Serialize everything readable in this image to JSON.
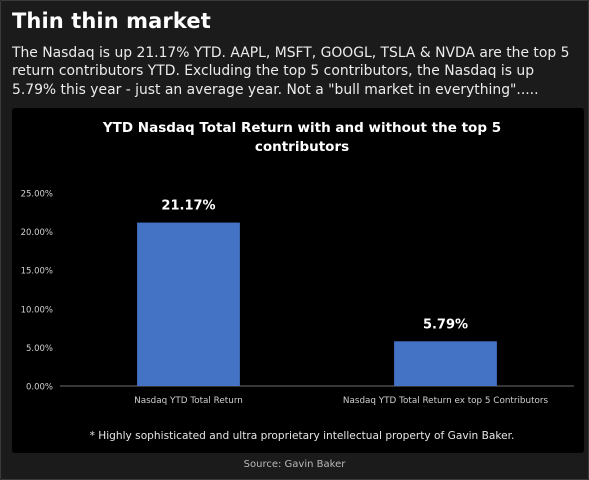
{
  "header": {
    "title": "Thin thin market",
    "description": "The Nasdaq is up 21.17% YTD. AAPL, MSFT, GOOGL, TSLA & NVDA are the top 5 return contributors YTD. Excluding the top 5 contributors, the Nasdaq is up 5.79% this year - just an average year. Not a \"bull market in everything\"....."
  },
  "footer": {
    "source": "Source: Gavin Baker"
  },
  "chart_data": {
    "type": "bar",
    "title_lines": [
      "YTD Nasdaq Total Return with and without the top 5",
      "contributors"
    ],
    "categories": [
      "Nasdaq YTD Total Return",
      "Nasdaq YTD Total Return ex top 5 Contributors"
    ],
    "values": [
      21.17,
      5.79
    ],
    "data_labels": [
      "21.17%",
      "5.79%"
    ],
    "ylim": [
      0,
      25
    ],
    "yticks": [
      "0.00%",
      "5.00%",
      "10.00%",
      "15.00%",
      "20.00%",
      "25.00%"
    ],
    "xlabel": "",
    "ylabel": "",
    "grid": false,
    "legend": "none",
    "note": "* Highly sophisticated and ultra proprietary intellectual property of Gavin Baker.",
    "colors": {
      "bar": "#4472c4",
      "background": "#000000",
      "text": "#ffffff",
      "tick_text": "#d0d0d0",
      "axis": "#6e6e6e"
    }
  }
}
